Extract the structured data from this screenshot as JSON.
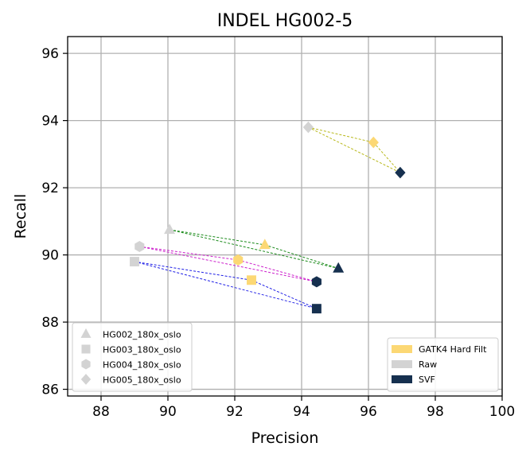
{
  "chart_data": {
    "type": "scatter",
    "title": "INDEL HG002-5",
    "xlabel": "Precision",
    "ylabel": "Recall",
    "xlim": [
      87,
      100
    ],
    "ylim": [
      85.8,
      96.5
    ],
    "xticks": [
      88,
      90,
      92,
      94,
      96,
      98,
      100
    ],
    "yticks": [
      86,
      88,
      90,
      92,
      94,
      96
    ],
    "grid": true,
    "colors": {
      "GATK4 Hard Filt": "#fcd874",
      "Raw": "#d3d3d3",
      "SVF": "#16304f"
    },
    "samples": [
      {
        "name": "HG002_180x_oslo",
        "marker": "triangle",
        "line_color": "#1a8a1a",
        "points": {
          "Raw": [
            90.05,
            90.75
          ],
          "GATK4 Hard Filt": [
            92.9,
            90.3
          ],
          "SVF": [
            95.1,
            89.6
          ]
        }
      },
      {
        "name": "HG003_180x_oslo",
        "marker": "square",
        "line_color": "#1f1fe6",
        "points": {
          "Raw": [
            89.0,
            89.8
          ],
          "GATK4 Hard Filt": [
            92.5,
            89.25
          ],
          "SVF": [
            94.45,
            88.4
          ]
        }
      },
      {
        "name": "HG004_180x_oslo",
        "marker": "hexagon",
        "line_color": "#cc1fcc",
        "points": {
          "Raw": [
            89.15,
            90.25
          ],
          "GATK4 Hard Filt": [
            92.1,
            89.85
          ],
          "SVF": [
            94.45,
            89.2
          ]
        }
      },
      {
        "name": "HG005_180x_oslo",
        "marker": "diamond",
        "line_color": "#b8b81a",
        "points": {
          "Raw": [
            94.2,
            93.8
          ],
          "GATK4 Hard Filt": [
            96.15,
            93.35
          ],
          "SVF": [
            96.95,
            92.45
          ]
        }
      }
    ],
    "legend_markers": {
      "placement": "lower-left",
      "entries": [
        "HG002_180x_oslo",
        "HG003_180x_oslo",
        "HG004_180x_oslo",
        "HG005_180x_oslo"
      ]
    },
    "legend_colors": {
      "placement": "lower-right",
      "entries": [
        "GATK4 Hard Filt",
        "Raw",
        "SVF"
      ]
    }
  }
}
